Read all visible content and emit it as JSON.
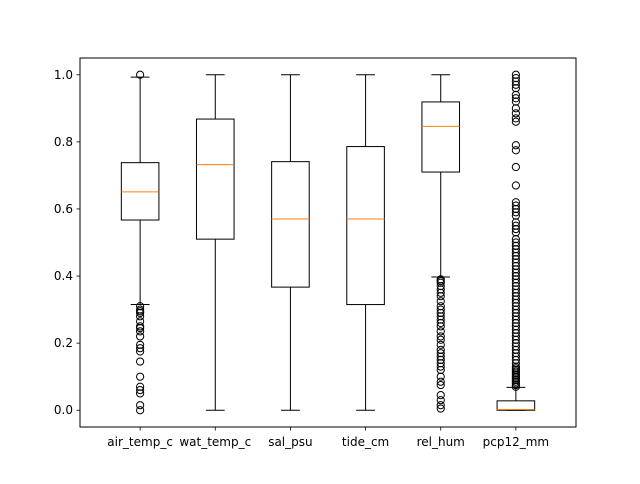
{
  "chart_data": {
    "type": "boxplot",
    "title": "",
    "xlabel": "",
    "ylabel": "",
    "ylim": [
      -0.05,
      1.05
    ],
    "yticks": [
      0.0,
      0.2,
      0.4,
      0.6,
      0.8,
      1.0
    ],
    "ytick_labels": [
      "0.0",
      "0.2",
      "0.4",
      "0.6",
      "0.8",
      "1.0"
    ],
    "grid": false,
    "colors": {
      "box": "#000000",
      "median": "#ff7f0e",
      "flier": "#000000"
    },
    "categories": [
      "air_temp_c",
      "wat_temp_c",
      "sal_psu",
      "tide_cm",
      "rel_hum",
      "pcp12_mm"
    ],
    "boxes": [
      {
        "label": "air_temp_c",
        "whisker_low": 0.315,
        "q1": 0.567,
        "median": 0.651,
        "q3": 0.738,
        "whisker_high": 0.993,
        "fliers": [
          1.0,
          0.31,
          0.3,
          0.295,
          0.29,
          0.28,
          0.265,
          0.25,
          0.245,
          0.235,
          0.22,
          0.195,
          0.185,
          0.175,
          0.145,
          0.1,
          0.07,
          0.06,
          0.05,
          0.015,
          0.0
        ]
      },
      {
        "label": "wat_temp_c",
        "whisker_low": 0.0,
        "q1": 0.51,
        "median": 0.732,
        "q3": 0.868,
        "whisker_high": 1.0,
        "fliers": []
      },
      {
        "label": "sal_psu",
        "whisker_low": 0.0,
        "q1": 0.367,
        "median": 0.57,
        "q3": 0.741,
        "whisker_high": 1.0,
        "fliers": []
      },
      {
        "label": "tide_cm",
        "whisker_low": 0.0,
        "q1": 0.315,
        "median": 0.57,
        "q3": 0.786,
        "whisker_high": 1.0,
        "fliers": []
      },
      {
        "label": "rel_hum",
        "whisker_low": 0.397,
        "q1": 0.71,
        "median": 0.846,
        "q3": 0.919,
        "whisker_high": 1.0,
        "fliers": [
          0.39,
          0.385,
          0.38,
          0.37,
          0.36,
          0.35,
          0.34,
          0.325,
          0.31,
          0.3,
          0.29,
          0.28,
          0.27,
          0.26,
          0.25,
          0.235,
          0.22,
          0.21,
          0.195,
          0.18,
          0.17,
          0.16,
          0.15,
          0.14,
          0.13,
          0.12,
          0.1,
          0.085,
          0.075,
          0.045,
          0.03,
          0.015,
          0.005
        ]
      },
      {
        "label": "pcp12_mm",
        "whisker_low": 0.0,
        "q1": 0.0,
        "median": 0.002,
        "q3": 0.028,
        "whisker_high": 0.068,
        "fliers": [
          1.0,
          0.99,
          0.98,
          0.97,
          0.96,
          0.94,
          0.93,
          0.92,
          0.9,
          0.885,
          0.87,
          0.86,
          0.79,
          0.775,
          0.725,
          0.67,
          0.62,
          0.61,
          0.6,
          0.59,
          0.58,
          0.56,
          0.55,
          0.54,
          0.53,
          0.51,
          0.5,
          0.49,
          0.48,
          0.47,
          0.46,
          0.45,
          0.44,
          0.43,
          0.42,
          0.41,
          0.4,
          0.39,
          0.38,
          0.37,
          0.36,
          0.35,
          0.34,
          0.33,
          0.32,
          0.31,
          0.3,
          0.29,
          0.28,
          0.27,
          0.26,
          0.25,
          0.24,
          0.23,
          0.22,
          0.21,
          0.2,
          0.19,
          0.18,
          0.17,
          0.16,
          0.15,
          0.14,
          0.13,
          0.125,
          0.12,
          0.115,
          0.11,
          0.105,
          0.1,
          0.095,
          0.09,
          0.085,
          0.08,
          0.075,
          0.07
        ]
      }
    ]
  }
}
